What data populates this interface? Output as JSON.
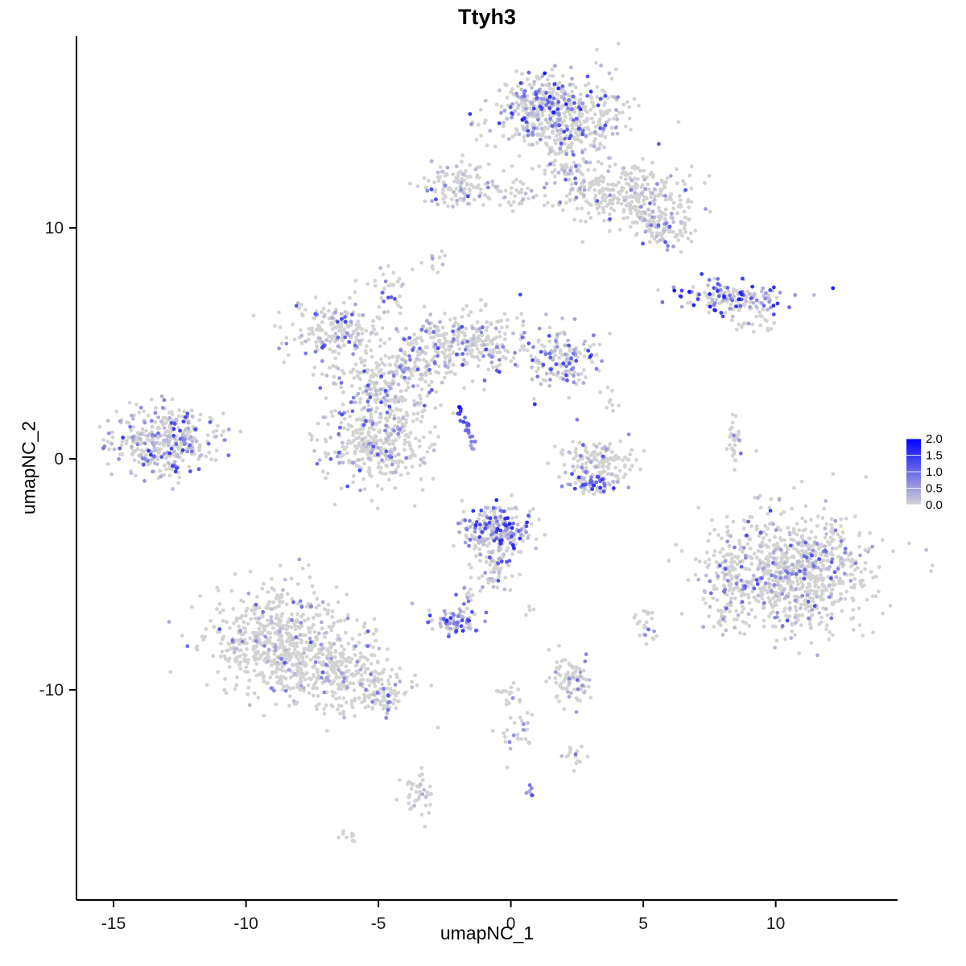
{
  "title": "Ttyh3",
  "chart_data": {
    "type": "scatter",
    "title": "Ttyh3",
    "subtitle": "",
    "xlabel": "umapNC_1",
    "ylabel": "umapNC_2",
    "xlim": [
      -16.4,
      14.6
    ],
    "ylim": [
      -19.1,
      18.3
    ],
    "xticks": [
      -15,
      -10,
      -5,
      0,
      5,
      10
    ],
    "yticks": [
      -10,
      0,
      10
    ],
    "grid": false,
    "point_radius_px": 2.4,
    "colors": {
      "low": "#D3D3D3",
      "high": "#0000FF",
      "axis": "#000000",
      "text": "#1a1a1a"
    },
    "legend": {
      "position": "right",
      "vmin": 0,
      "vmax": 2,
      "values": [
        2.0,
        1.5,
        1.0,
        0.5,
        0.0
      ],
      "labels": [
        "2.0",
        "1.5",
        "1.0",
        "0.5",
        "0.0"
      ]
    },
    "clusters": [
      {
        "cx": 1.9,
        "cy": 14.9,
        "sx": 1.25,
        "sy": 0.85,
        "n": 430,
        "frac": 0.28,
        "vmax": 1.5
      },
      {
        "cx": 1.15,
        "cy": 15.4,
        "sx": 0.5,
        "sy": 0.5,
        "n": 120,
        "frac": 0.55,
        "vmax": 1.8
      },
      {
        "cx": 2.1,
        "cy": 12.7,
        "sx": 0.5,
        "sy": 0.8,
        "n": 90,
        "frac": 0.18,
        "vmax": 1.3
      },
      {
        "cx": 4.3,
        "cy": 11.5,
        "sx": 1.2,
        "sy": 0.7,
        "n": 300,
        "frac": 0.12,
        "vmax": 1.2
      },
      {
        "cx": 5.8,
        "cy": 10.1,
        "sx": 0.55,
        "sy": 0.45,
        "n": 110,
        "frac": 0.28,
        "vmax": 1.4
      },
      {
        "cx": -2.1,
        "cy": 11.9,
        "sx": 0.75,
        "sy": 0.45,
        "n": 130,
        "frac": 0.3,
        "vmax": 1.5
      },
      {
        "cx": 0.1,
        "cy": 11.4,
        "sx": 0.5,
        "sy": 0.3,
        "n": 30,
        "frac": 0.15,
        "vmax": 1.0
      },
      {
        "cx": 8.6,
        "cy": 7.0,
        "sx": 1.05,
        "sy": 0.3,
        "n": 160,
        "frac": 0.55,
        "vmax": 1.8
      },
      {
        "cx": 9.3,
        "cy": 5.9,
        "sx": 0.4,
        "sy": 0.25,
        "n": 22,
        "frac": 0.05,
        "vmax": 0.8
      },
      {
        "cx": -2.8,
        "cy": 8.6,
        "sx": 0.25,
        "sy": 0.3,
        "n": 12,
        "frac": 0.2,
        "vmax": 1.0
      },
      {
        "cx": -4.5,
        "cy": 7.4,
        "sx": 0.3,
        "sy": 0.45,
        "n": 30,
        "frac": 0.3,
        "vmax": 1.3
      },
      {
        "cx": -6.6,
        "cy": 5.5,
        "sx": 0.9,
        "sy": 0.7,
        "n": 200,
        "frac": 0.25,
        "vmax": 1.4
      },
      {
        "cx": -4.8,
        "cy": 3.2,
        "sx": 0.9,
        "sy": 0.9,
        "n": 250,
        "frac": 0.2,
        "vmax": 1.3
      },
      {
        "cx": -3.3,
        "cy": 4.4,
        "sx": 0.6,
        "sy": 0.8,
        "n": 90,
        "frac": 0.2,
        "vmax": 1.2
      },
      {
        "cx": -1.4,
        "cy": 5.0,
        "sx": 1.0,
        "sy": 0.7,
        "n": 250,
        "frac": 0.22,
        "vmax": 1.4
      },
      {
        "cx": 1.8,
        "cy": 4.3,
        "sx": 0.75,
        "sy": 0.6,
        "n": 160,
        "frac": 0.5,
        "vmax": 1.6
      },
      {
        "cx": -13.1,
        "cy": 0.8,
        "sx": 1.0,
        "sy": 0.75,
        "n": 380,
        "frac": 0.38,
        "vmax": 1.5
      },
      {
        "cx": -5.0,
        "cy": 0.6,
        "sx": 0.95,
        "sy": 0.85,
        "n": 350,
        "frac": 0.2,
        "vmax": 1.3
      },
      {
        "cx": 3.35,
        "cy": -0.1,
        "sx": 0.75,
        "sy": 0.45,
        "n": 130,
        "frac": 0.15,
        "vmax": 1.2
      },
      {
        "cx": 3.1,
        "cy": -1.05,
        "sx": 0.6,
        "sy": 0.25,
        "n": 80,
        "frac": 0.6,
        "vmax": 1.6
      },
      {
        "cx": 8.4,
        "cy": 0.7,
        "sx": 0.12,
        "sy": 0.5,
        "n": 32,
        "frac": 0.1,
        "vmax": 1.0
      },
      {
        "cx": -0.5,
        "cy": -3.1,
        "sx": 0.65,
        "sy": 0.6,
        "n": 240,
        "frac": 0.55,
        "vmax": 1.7
      },
      {
        "cx": -0.7,
        "cy": -4.7,
        "sx": 0.35,
        "sy": 0.4,
        "n": 60,
        "frac": 0.3,
        "vmax": 1.3
      },
      {
        "cx": -1.6,
        "cy": -5.8,
        "sx": 0.2,
        "sy": 0.3,
        "n": 12,
        "frac": 0.3,
        "vmax": 1.2
      },
      {
        "cx": -2.1,
        "cy": -7.0,
        "sx": 0.45,
        "sy": 0.3,
        "n": 85,
        "frac": 0.7,
        "vmax": 1.6
      },
      {
        "cx": 10.6,
        "cy": -4.8,
        "sx": 1.5,
        "sy": 1.3,
        "n": 850,
        "frac": 0.22,
        "vmax": 1.4
      },
      {
        "cx": 8.3,
        "cy": -5.6,
        "sx": 0.35,
        "sy": 1.0,
        "n": 90,
        "frac": 0.2,
        "vmax": 1.2
      },
      {
        "cx": -8.8,
        "cy": -7.8,
        "sx": 1.3,
        "sy": 1.1,
        "n": 550,
        "frac": 0.13,
        "vmax": 1.3
      },
      {
        "cx": -6.6,
        "cy": -9.3,
        "sx": 1.1,
        "sy": 0.8,
        "n": 300,
        "frac": 0.12,
        "vmax": 1.2
      },
      {
        "cx": -4.9,
        "cy": -10.2,
        "sx": 0.5,
        "sy": 0.4,
        "n": 80,
        "frac": 0.25,
        "vmax": 1.3
      },
      {
        "cx": 2.3,
        "cy": -9.6,
        "sx": 0.45,
        "sy": 0.6,
        "n": 80,
        "frac": 0.25,
        "vmax": 1.3
      },
      {
        "cx": 5.0,
        "cy": -7.4,
        "sx": 0.25,
        "sy": 0.5,
        "n": 25,
        "frac": 0.15,
        "vmax": 1.0
      },
      {
        "cx": -0.2,
        "cy": -10.1,
        "sx": 0.3,
        "sy": 0.3,
        "n": 15,
        "frac": 0.15,
        "vmax": 1.0
      },
      {
        "cx": 0.3,
        "cy": -11.9,
        "sx": 0.35,
        "sy": 0.55,
        "n": 30,
        "frac": 0.15,
        "vmax": 1.1
      },
      {
        "cx": 2.3,
        "cy": -12.8,
        "sx": 0.3,
        "sy": 0.3,
        "n": 15,
        "frac": 0.15,
        "vmax": 1.1
      },
      {
        "cx": 0.65,
        "cy": -14.3,
        "sx": 0.12,
        "sy": 0.3,
        "n": 7,
        "frac": 0.85,
        "vmax": 1.3
      },
      {
        "cx": -3.5,
        "cy": -14.5,
        "sx": 0.3,
        "sy": 0.6,
        "n": 45,
        "frac": 0.15,
        "vmax": 1.1
      },
      {
        "cx": -6.1,
        "cy": -16.3,
        "sx": 0.3,
        "sy": 0.15,
        "n": 10,
        "frac": 0.0,
        "vmax": 0.5
      },
      {
        "cx": 3.7,
        "cy": 2.5,
        "sx": 0.2,
        "sy": 0.3,
        "n": 8,
        "frac": 0.0,
        "vmax": 0.5
      },
      {
        "cx": 0.8,
        "cy": -6.5,
        "sx": 0.15,
        "sy": 0.2,
        "n": 4,
        "frac": 0.0,
        "vmax": 0.5
      },
      {
        "type": "line",
        "x1": -2.0,
        "y1": 2.2,
        "x2": -1.35,
        "y2": 0.5,
        "jitter": 0.07,
        "n": 26,
        "vmin": 0.5,
        "vmax": 1.5
      }
    ],
    "highlight_points": [
      {
        "x": -1.95,
        "y": 2.25,
        "v": 2.0
      },
      {
        "x": 2.5,
        "y": 1.7,
        "v": 0.8
      }
    ]
  }
}
